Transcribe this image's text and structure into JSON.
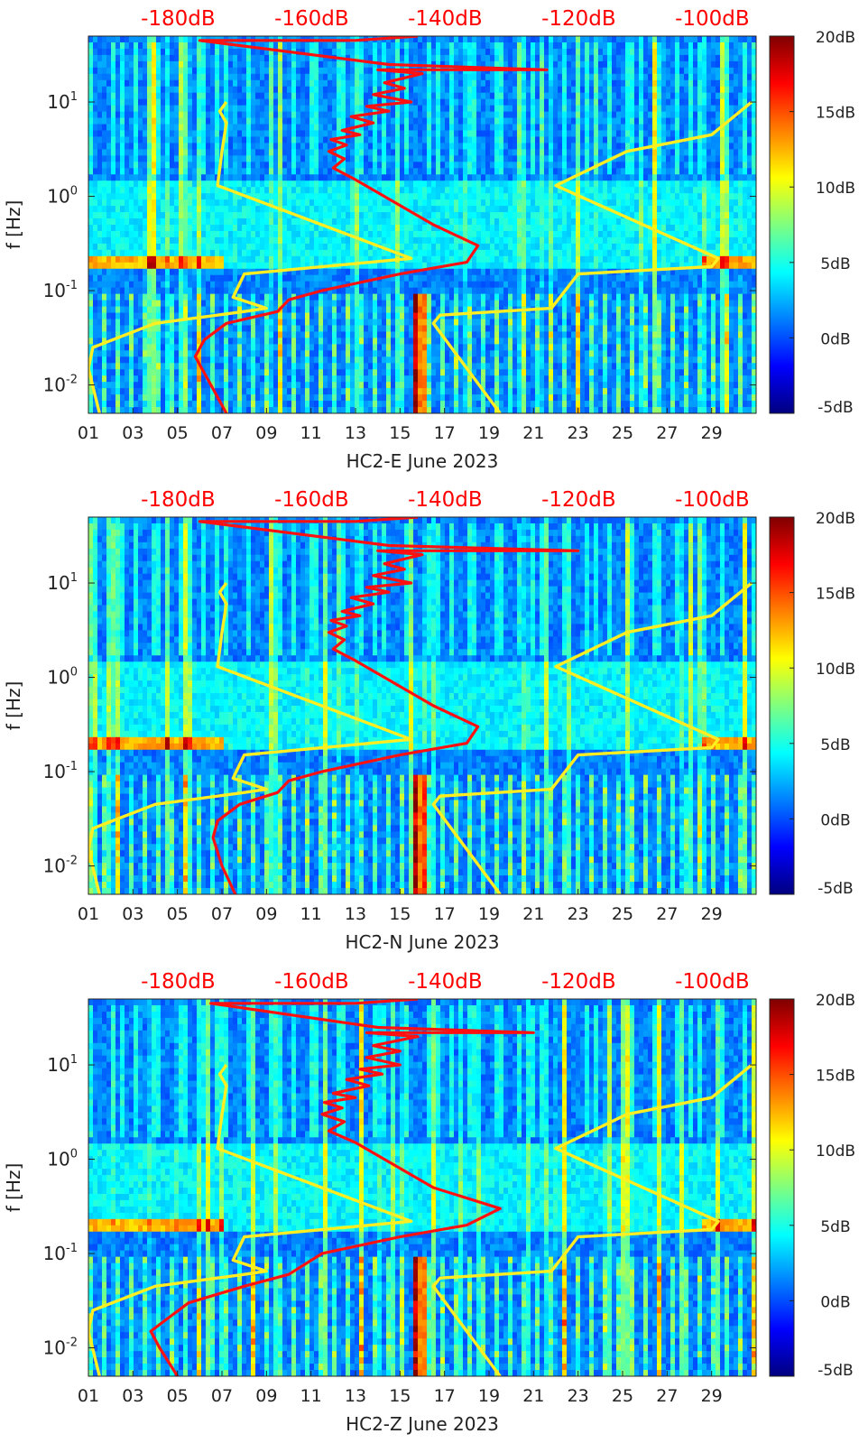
{
  "chart_data": [
    {
      "type": "heatmap",
      "xlabel": "HC2-E June 2023",
      "ylabel": "f [Hz]",
      "x_tick_labels": [
        "01",
        "03",
        "05",
        "07",
        "09",
        "11",
        "13",
        "15",
        "17",
        "19",
        "21",
        "23",
        "25",
        "27",
        "29"
      ],
      "y_tick_labels": [
        {
          "base": "10",
          "exp": "1"
        },
        {
          "base": "10",
          "exp": "0"
        },
        {
          "base": "10",
          "exp": "-1"
        },
        {
          "base": "10",
          "exp": "-2"
        }
      ],
      "y_scale": "log",
      "ylim": [
        0.005,
        50
      ],
      "xlim": [
        1,
        31
      ],
      "top_axis_tick_labels": [
        "-180dB",
        "-160dB",
        "-140dB",
        "-120dB",
        "-100dB"
      ],
      "top_axis_color": "#ff0000",
      "colorbar": {
        "labels": [
          "20dB",
          "15dB",
          "10dB",
          "5dB",
          "0dB",
          "-5dB"
        ],
        "range": [
          -5,
          20
        ],
        "colormap": "jet"
      },
      "series": [
        {
          "color": "#ffee22",
          "x": [
            1.5,
            1.0,
            1.2,
            4.0,
            8.0,
            9.0,
            7.5,
            8.0,
            15.5,
            6.8,
            7.0,
            7.2,
            6.9,
            7.2
          ],
          "y": [
            0.005,
            0.015,
            0.025,
            0.045,
            0.06,
            0.065,
            0.085,
            0.15,
            0.22,
            1.3,
            3,
            6,
            8,
            10
          ]
        },
        {
          "color": "#ffee22",
          "x": [
            19.5,
            16.5,
            16.8,
            21.8,
            23.0,
            29.0,
            29.3,
            22.0,
            25.2,
            29.0,
            30.8
          ],
          "y": [
            0.005,
            0.045,
            0.055,
            0.065,
            0.15,
            0.18,
            0.22,
            1.3,
            3,
            4.5,
            10
          ]
        },
        {
          "color": "#ff1111",
          "x": [
            7.2,
            6.5,
            5.8,
            6.2,
            7.2,
            9.5,
            10.0,
            11.5,
            15.0,
            18.0,
            18.5,
            16.5,
            13.0,
            12.0,
            12.5,
            11.8,
            12.6,
            11.9,
            13.2,
            12.4,
            13.8,
            12.8,
            14.5,
            13.5,
            15.5,
            13.8,
            15.2,
            14.3,
            16.0,
            14.0,
            21.6,
            14.5,
            6.0,
            13.0,
            15.8
          ],
          "y": [
            0.005,
            0.01,
            0.02,
            0.03,
            0.045,
            0.06,
            0.08,
            0.1,
            0.15,
            0.2,
            0.3,
            0.5,
            1.5,
            2,
            2.5,
            3,
            3.5,
            4,
            4.5,
            5,
            6,
            7,
            8,
            9,
            10,
            12,
            14,
            16,
            20,
            22,
            22,
            25,
            45,
            45,
            50
          ]
        }
      ]
    },
    {
      "type": "heatmap",
      "xlabel": "HC2-N June 2023",
      "ylabel": "f [Hz]",
      "x_tick_labels": [
        "01",
        "03",
        "05",
        "07",
        "09",
        "11",
        "13",
        "15",
        "17",
        "19",
        "21",
        "23",
        "25",
        "27",
        "29"
      ],
      "y_tick_labels": [
        {
          "base": "10",
          "exp": "1"
        },
        {
          "base": "10",
          "exp": "0"
        },
        {
          "base": "10",
          "exp": "-1"
        },
        {
          "base": "10",
          "exp": "-2"
        }
      ],
      "y_scale": "log",
      "ylim": [
        0.005,
        50
      ],
      "xlim": [
        1,
        31
      ],
      "top_axis_tick_labels": [
        "-180dB",
        "-160dB",
        "-140dB",
        "-120dB",
        "-100dB"
      ],
      "top_axis_color": "#ff0000",
      "colorbar": {
        "labels": [
          "20dB",
          "15dB",
          "10dB",
          "5dB",
          "0dB",
          "-5dB"
        ],
        "range": [
          -5,
          20
        ],
        "colormap": "jet"
      },
      "series": [
        {
          "color": "#ffee22",
          "x": [
            1.5,
            1.0,
            1.2,
            4.0,
            8.0,
            9.0,
            7.5,
            8.0,
            15.5,
            6.8,
            7.0,
            7.2,
            6.9,
            7.2
          ],
          "y": [
            0.005,
            0.015,
            0.025,
            0.045,
            0.06,
            0.065,
            0.085,
            0.15,
            0.22,
            1.3,
            3,
            6,
            8,
            10
          ]
        },
        {
          "color": "#ffee22",
          "x": [
            19.5,
            16.5,
            16.8,
            21.8,
            23.0,
            29.0,
            29.3,
            22.0,
            25.2,
            29.0,
            30.8
          ],
          "y": [
            0.005,
            0.045,
            0.055,
            0.065,
            0.15,
            0.18,
            0.22,
            1.3,
            3,
            4.5,
            10
          ]
        },
        {
          "color": "#ff1111",
          "x": [
            7.6,
            7.0,
            6.6,
            6.8,
            7.8,
            9.5,
            10.0,
            11.5,
            15.0,
            18.0,
            18.5,
            16.5,
            13.0,
            12.0,
            12.5,
            11.8,
            12.6,
            11.9,
            13.2,
            12.4,
            13.8,
            12.8,
            14.5,
            13.5,
            15.5,
            13.8,
            15.2,
            14.3,
            16.0,
            14.0,
            23.0,
            14.5,
            6.0,
            13.0,
            15.8
          ],
          "y": [
            0.005,
            0.01,
            0.02,
            0.03,
            0.045,
            0.06,
            0.08,
            0.1,
            0.15,
            0.2,
            0.3,
            0.5,
            1.5,
            2,
            2.5,
            3,
            3.5,
            4,
            4.5,
            5,
            6,
            7,
            8,
            9,
            10,
            12,
            14,
            16,
            20,
            22,
            22,
            25,
            45,
            45,
            50
          ]
        }
      ]
    },
    {
      "type": "heatmap",
      "xlabel": "HC2-Z June 2023",
      "ylabel": "f [Hz]",
      "x_tick_labels": [
        "01",
        "03",
        "05",
        "07",
        "09",
        "11",
        "13",
        "15",
        "17",
        "19",
        "21",
        "23",
        "25",
        "27",
        "29"
      ],
      "y_tick_labels": [
        {
          "base": "10",
          "exp": "1"
        },
        {
          "base": "10",
          "exp": "0"
        },
        {
          "base": "10",
          "exp": "-1"
        },
        {
          "base": "10",
          "exp": "-2"
        }
      ],
      "y_scale": "log",
      "ylim": [
        0.005,
        50
      ],
      "xlim": [
        1,
        31
      ],
      "top_axis_tick_labels": [
        "-180dB",
        "-160dB",
        "-140dB",
        "-120dB",
        "-100dB"
      ],
      "top_axis_color": "#ff0000",
      "colorbar": {
        "labels": [
          "20dB",
          "15dB",
          "10dB",
          "5dB",
          "0dB",
          "-5dB"
        ],
        "range": [
          -5,
          20
        ],
        "colormap": "jet"
      },
      "series": [
        {
          "color": "#ffee22",
          "x": [
            1.5,
            1.0,
            1.2,
            4.0,
            8.0,
            9.0,
            7.5,
            8.0,
            15.5,
            6.8,
            7.0,
            7.2,
            6.9,
            7.2
          ],
          "y": [
            0.005,
            0.015,
            0.025,
            0.045,
            0.06,
            0.065,
            0.085,
            0.15,
            0.22,
            1.3,
            3,
            6,
            8,
            10
          ]
        },
        {
          "color": "#ffee22",
          "x": [
            19.5,
            16.5,
            16.8,
            21.8,
            23.0,
            29.0,
            29.3,
            22.0,
            25.2,
            29.0,
            30.8
          ],
          "y": [
            0.005,
            0.045,
            0.055,
            0.065,
            0.15,
            0.18,
            0.22,
            1.3,
            3,
            4.5,
            10
          ]
        },
        {
          "color": "#ff1111",
          "x": [
            5.0,
            4.2,
            3.8,
            4.5,
            5.5,
            8.0,
            10.0,
            11.5,
            15.0,
            18.0,
            19.5,
            16.5,
            13.0,
            11.8,
            12.5,
            11.5,
            12.4,
            11.6,
            13.0,
            12.0,
            13.6,
            12.6,
            14.2,
            13.2,
            15.0,
            13.5,
            15.0,
            13.8,
            15.8,
            13.5,
            21.0,
            14.0,
            6.5,
            13.0,
            15.8
          ],
          "y": [
            0.005,
            0.01,
            0.015,
            0.02,
            0.03,
            0.045,
            0.06,
            0.1,
            0.15,
            0.2,
            0.3,
            0.5,
            1.5,
            2,
            2.5,
            3,
            3.5,
            4,
            4.5,
            5,
            6,
            7,
            8,
            9,
            10,
            12,
            14,
            16,
            20,
            22,
            22,
            25,
            45,
            45,
            50
          ]
        }
      ]
    }
  ]
}
